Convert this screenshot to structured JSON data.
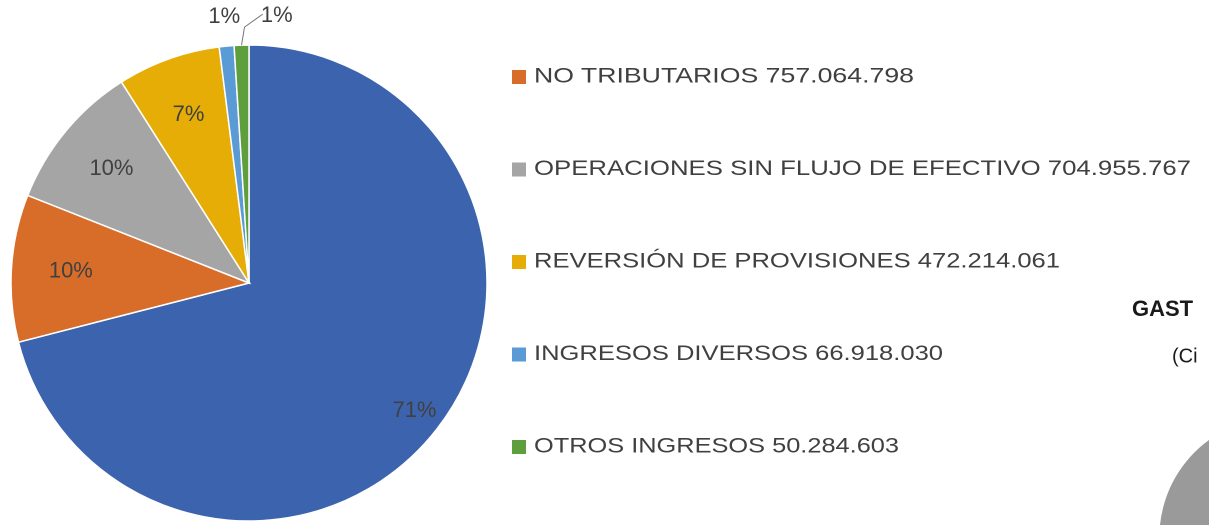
{
  "chart_data": {
    "type": "pie",
    "categories": [
      null,
      "NO TRIBUTARIOS 757.064.798",
      "OPERACIONES SIN FLUJO DE EFECTIVO 704.955.767",
      "REVERSIÓN DE PROVISIONES 472.214.061",
      "INGRESOS DIVERSOS 66.918.030",
      "OTROS INGRESOS 50.284.603"
    ],
    "values": [
      71,
      10,
      10,
      7,
      1,
      1
    ],
    "value_labels": [
      "71%",
      "10%",
      "10%",
      "7%",
      "1%",
      "1%"
    ],
    "colors": [
      "#3c64ae",
      "#d86d2a",
      "#a5a5a5",
      "#e6ad06",
      "#5b9bd5",
      "#5e9e3c"
    ]
  },
  "annotations": [
    "GAST",
    "(Ci"
  ]
}
